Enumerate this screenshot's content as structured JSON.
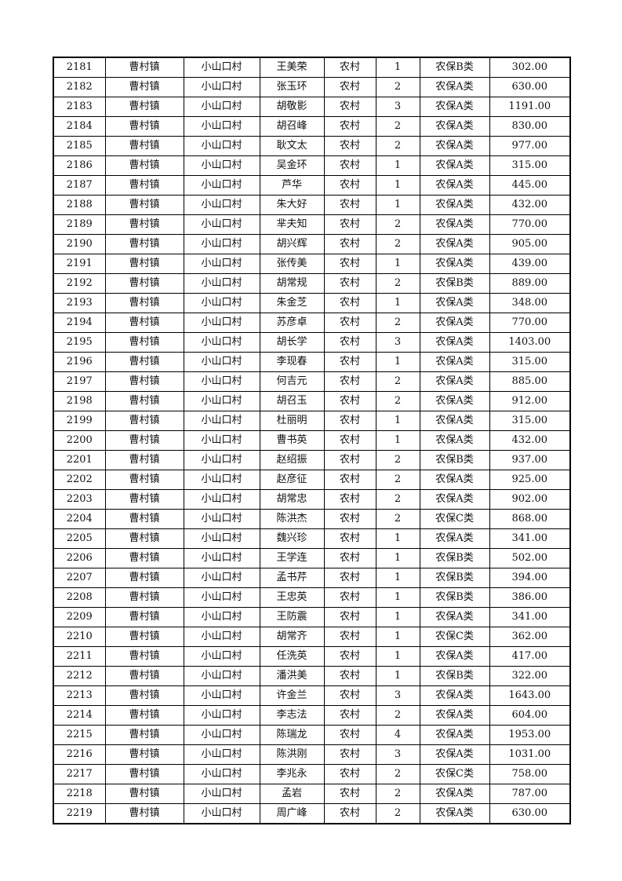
{
  "rows": [
    [
      "2181",
      "曹村镇",
      "小山口村",
      "王美荣",
      "农村",
      "1",
      "农保B类",
      "302.00"
    ],
    [
      "2182",
      "曹村镇",
      "小山口村",
      "张玉环",
      "农村",
      "2",
      "农保A类",
      "630.00"
    ],
    [
      "2183",
      "曹村镇",
      "小山口村",
      "胡敬影",
      "农村",
      "3",
      "农保A类",
      "1191.00"
    ],
    [
      "2184",
      "曹村镇",
      "小山口村",
      "胡召峰",
      "农村",
      "2",
      "农保A类",
      "830.00"
    ],
    [
      "2185",
      "曹村镇",
      "小山口村",
      "耿文太",
      "农村",
      "2",
      "农保A类",
      "977.00"
    ],
    [
      "2186",
      "曹村镇",
      "小山口村",
      "吴金环",
      "农村",
      "1",
      "农保A类",
      "315.00"
    ],
    [
      "2187",
      "曹村镇",
      "小山口村",
      "芦华",
      "农村",
      "1",
      "农保A类",
      "445.00"
    ],
    [
      "2188",
      "曹村镇",
      "小山口村",
      "朱大好",
      "农村",
      "1",
      "农保A类",
      "432.00"
    ],
    [
      "2189",
      "曹村镇",
      "小山口村",
      "芈夫知",
      "农村",
      "2",
      "农保A类",
      "770.00"
    ],
    [
      "2190",
      "曹村镇",
      "小山口村",
      "胡兴辉",
      "农村",
      "2",
      "农保A类",
      "905.00"
    ],
    [
      "2191",
      "曹村镇",
      "小山口村",
      "张传美",
      "农村",
      "1",
      "农保A类",
      "439.00"
    ],
    [
      "2192",
      "曹村镇",
      "小山口村",
      "胡常规",
      "农村",
      "2",
      "农保B类",
      "889.00"
    ],
    [
      "2193",
      "曹村镇",
      "小山口村",
      "朱金芝",
      "农村",
      "1",
      "农保A类",
      "348.00"
    ],
    [
      "2194",
      "曹村镇",
      "小山口村",
      "苏彦卓",
      "农村",
      "2",
      "农保A类",
      "770.00"
    ],
    [
      "2195",
      "曹村镇",
      "小山口村",
      "胡长学",
      "农村",
      "3",
      "农保A类",
      "1403.00"
    ],
    [
      "2196",
      "曹村镇",
      "小山口村",
      "李现春",
      "农村",
      "1",
      "农保A类",
      "315.00"
    ],
    [
      "2197",
      "曹村镇",
      "小山口村",
      "何吉元",
      "农村",
      "2",
      "农保A类",
      "885.00"
    ],
    [
      "2198",
      "曹村镇",
      "小山口村",
      "胡召玉",
      "农村",
      "2",
      "农保A类",
      "912.00"
    ],
    [
      "2199",
      "曹村镇",
      "小山口村",
      "杜丽明",
      "农村",
      "1",
      "农保A类",
      "315.00"
    ],
    [
      "2200",
      "曹村镇",
      "小山口村",
      "曹书英",
      "农村",
      "1",
      "农保A类",
      "432.00"
    ],
    [
      "2201",
      "曹村镇",
      "小山口村",
      "赵绍振",
      "农村",
      "2",
      "农保B类",
      "937.00"
    ],
    [
      "2202",
      "曹村镇",
      "小山口村",
      "赵彦征",
      "农村",
      "2",
      "农保A类",
      "925.00"
    ],
    [
      "2203",
      "曹村镇",
      "小山口村",
      "胡常忠",
      "农村",
      "2",
      "农保A类",
      "902.00"
    ],
    [
      "2204",
      "曹村镇",
      "小山口村",
      "陈洪杰",
      "农村",
      "2",
      "农保C类",
      "868.00"
    ],
    [
      "2205",
      "曹村镇",
      "小山口村",
      "魏兴珍",
      "农村",
      "1",
      "农保A类",
      "341.00"
    ],
    [
      "2206",
      "曹村镇",
      "小山口村",
      "王学连",
      "农村",
      "1",
      "农保B类",
      "502.00"
    ],
    [
      "2207",
      "曹村镇",
      "小山口村",
      "孟书芹",
      "农村",
      "1",
      "农保B类",
      "394.00"
    ],
    [
      "2208",
      "曹村镇",
      "小山口村",
      "王忠英",
      "农村",
      "1",
      "农保B类",
      "386.00"
    ],
    [
      "2209",
      "曹村镇",
      "小山口村",
      "王防震",
      "农村",
      "1",
      "农保A类",
      "341.00"
    ],
    [
      "2210",
      "曹村镇",
      "小山口村",
      "胡常齐",
      "农村",
      "1",
      "农保C类",
      "362.00"
    ],
    [
      "2211",
      "曹村镇",
      "小山口村",
      "任洗英",
      "农村",
      "1",
      "农保A类",
      "417.00"
    ],
    [
      "2212",
      "曹村镇",
      "小山口村",
      "潘洪美",
      "农村",
      "1",
      "农保B类",
      "322.00"
    ],
    [
      "2213",
      "曹村镇",
      "小山口村",
      "许金兰",
      "农村",
      "3",
      "农保A类",
      "1643.00"
    ],
    [
      "2214",
      "曹村镇",
      "小山口村",
      "李志法",
      "农村",
      "2",
      "农保A类",
      "604.00"
    ],
    [
      "2215",
      "曹村镇",
      "小山口村",
      "陈瑞龙",
      "农村",
      "4",
      "农保A类",
      "1953.00"
    ],
    [
      "2216",
      "曹村镇",
      "小山口村",
      "陈洪刚",
      "农村",
      "3",
      "农保A类",
      "1031.00"
    ],
    [
      "2217",
      "曹村镇",
      "小山口村",
      "李兆永",
      "农村",
      "2",
      "农保C类",
      "758.00"
    ],
    [
      "2218",
      "曹村镇",
      "小山口村",
      "孟岩",
      "农村",
      "2",
      "农保A类",
      "787.00"
    ],
    [
      "2219",
      "曹村镇",
      "小山口村",
      "周广峰",
      "农村",
      "2",
      "农保A类",
      "630.00"
    ]
  ]
}
